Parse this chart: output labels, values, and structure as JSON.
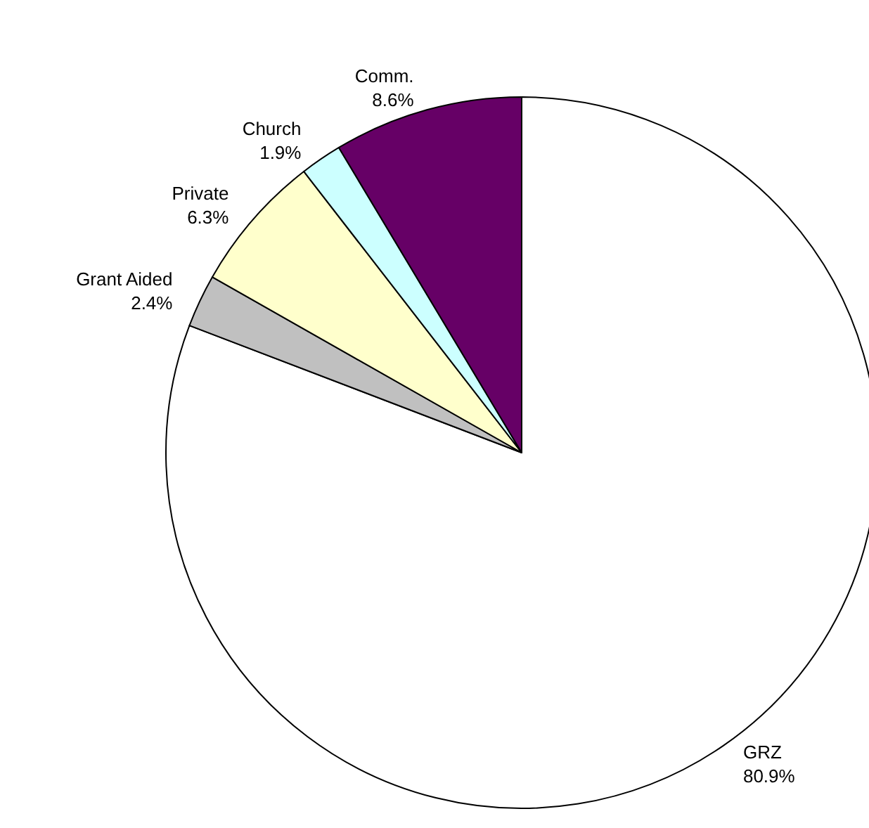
{
  "chart_data": {
    "type": "pie",
    "categories": [
      "GRZ",
      "Grant Aided",
      "Private",
      "Church",
      "Comm."
    ],
    "values": [
      80.9,
      2.4,
      6.3,
      1.9,
      8.6
    ],
    "colors": [
      "#ffffff",
      "#c0c0c0",
      "#ffffcc",
      "#ccffff",
      "#660066"
    ],
    "value_labels": [
      "80.9%",
      "2.4%",
      "6.3%",
      "1.9%",
      "8.6%"
    ],
    "legend": false
  }
}
